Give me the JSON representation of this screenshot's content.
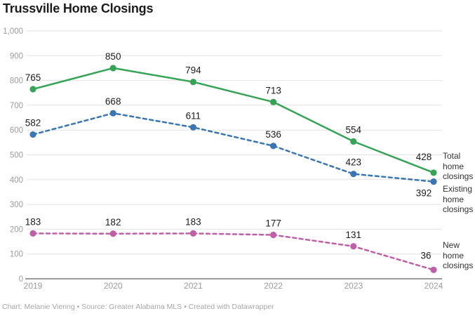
{
  "title": "Trussville Home Closings",
  "footer": "Chart: Melanie Viering • Source: Greater Alabama MLS • Created with Datawrapper",
  "chart_data": {
    "type": "line",
    "title": "Trussville Home Closings",
    "x": [
      "2019",
      "2020",
      "2021",
      "2022",
      "2023",
      "2024"
    ],
    "series": [
      {
        "name": "Total home closings",
        "color": "#35a457",
        "line_style": "solid",
        "values": [
          765,
          850,
          794,
          713,
          554,
          428
        ]
      },
      {
        "name": "Existing home closings",
        "color": "#3b76b4",
        "line_style": "dashed",
        "values": [
          582,
          668,
          611,
          536,
          423,
          392
        ]
      },
      {
        "name": "New home closings",
        "color": "#c05fa8",
        "line_style": "dashed",
        "values": [
          183,
          182,
          183,
          177,
          131,
          36
        ]
      }
    ],
    "ylim": [
      0,
      1000
    ],
    "yticks": [
      0,
      100,
      200,
      300,
      400,
      500,
      600,
      700,
      800,
      900,
      1000
    ],
    "ytick_labels": [
      "0",
      "100",
      "200",
      "300",
      "400",
      "500",
      "600",
      "700",
      "800",
      "900",
      "1,000"
    ],
    "grid": true,
    "legend_position": "right",
    "colors": {
      "data_label": "#1c1c1c",
      "tick_label": "#9d9d9d",
      "gridline": "#e2e2e2",
      "baseline": "#7a7a7a"
    }
  }
}
